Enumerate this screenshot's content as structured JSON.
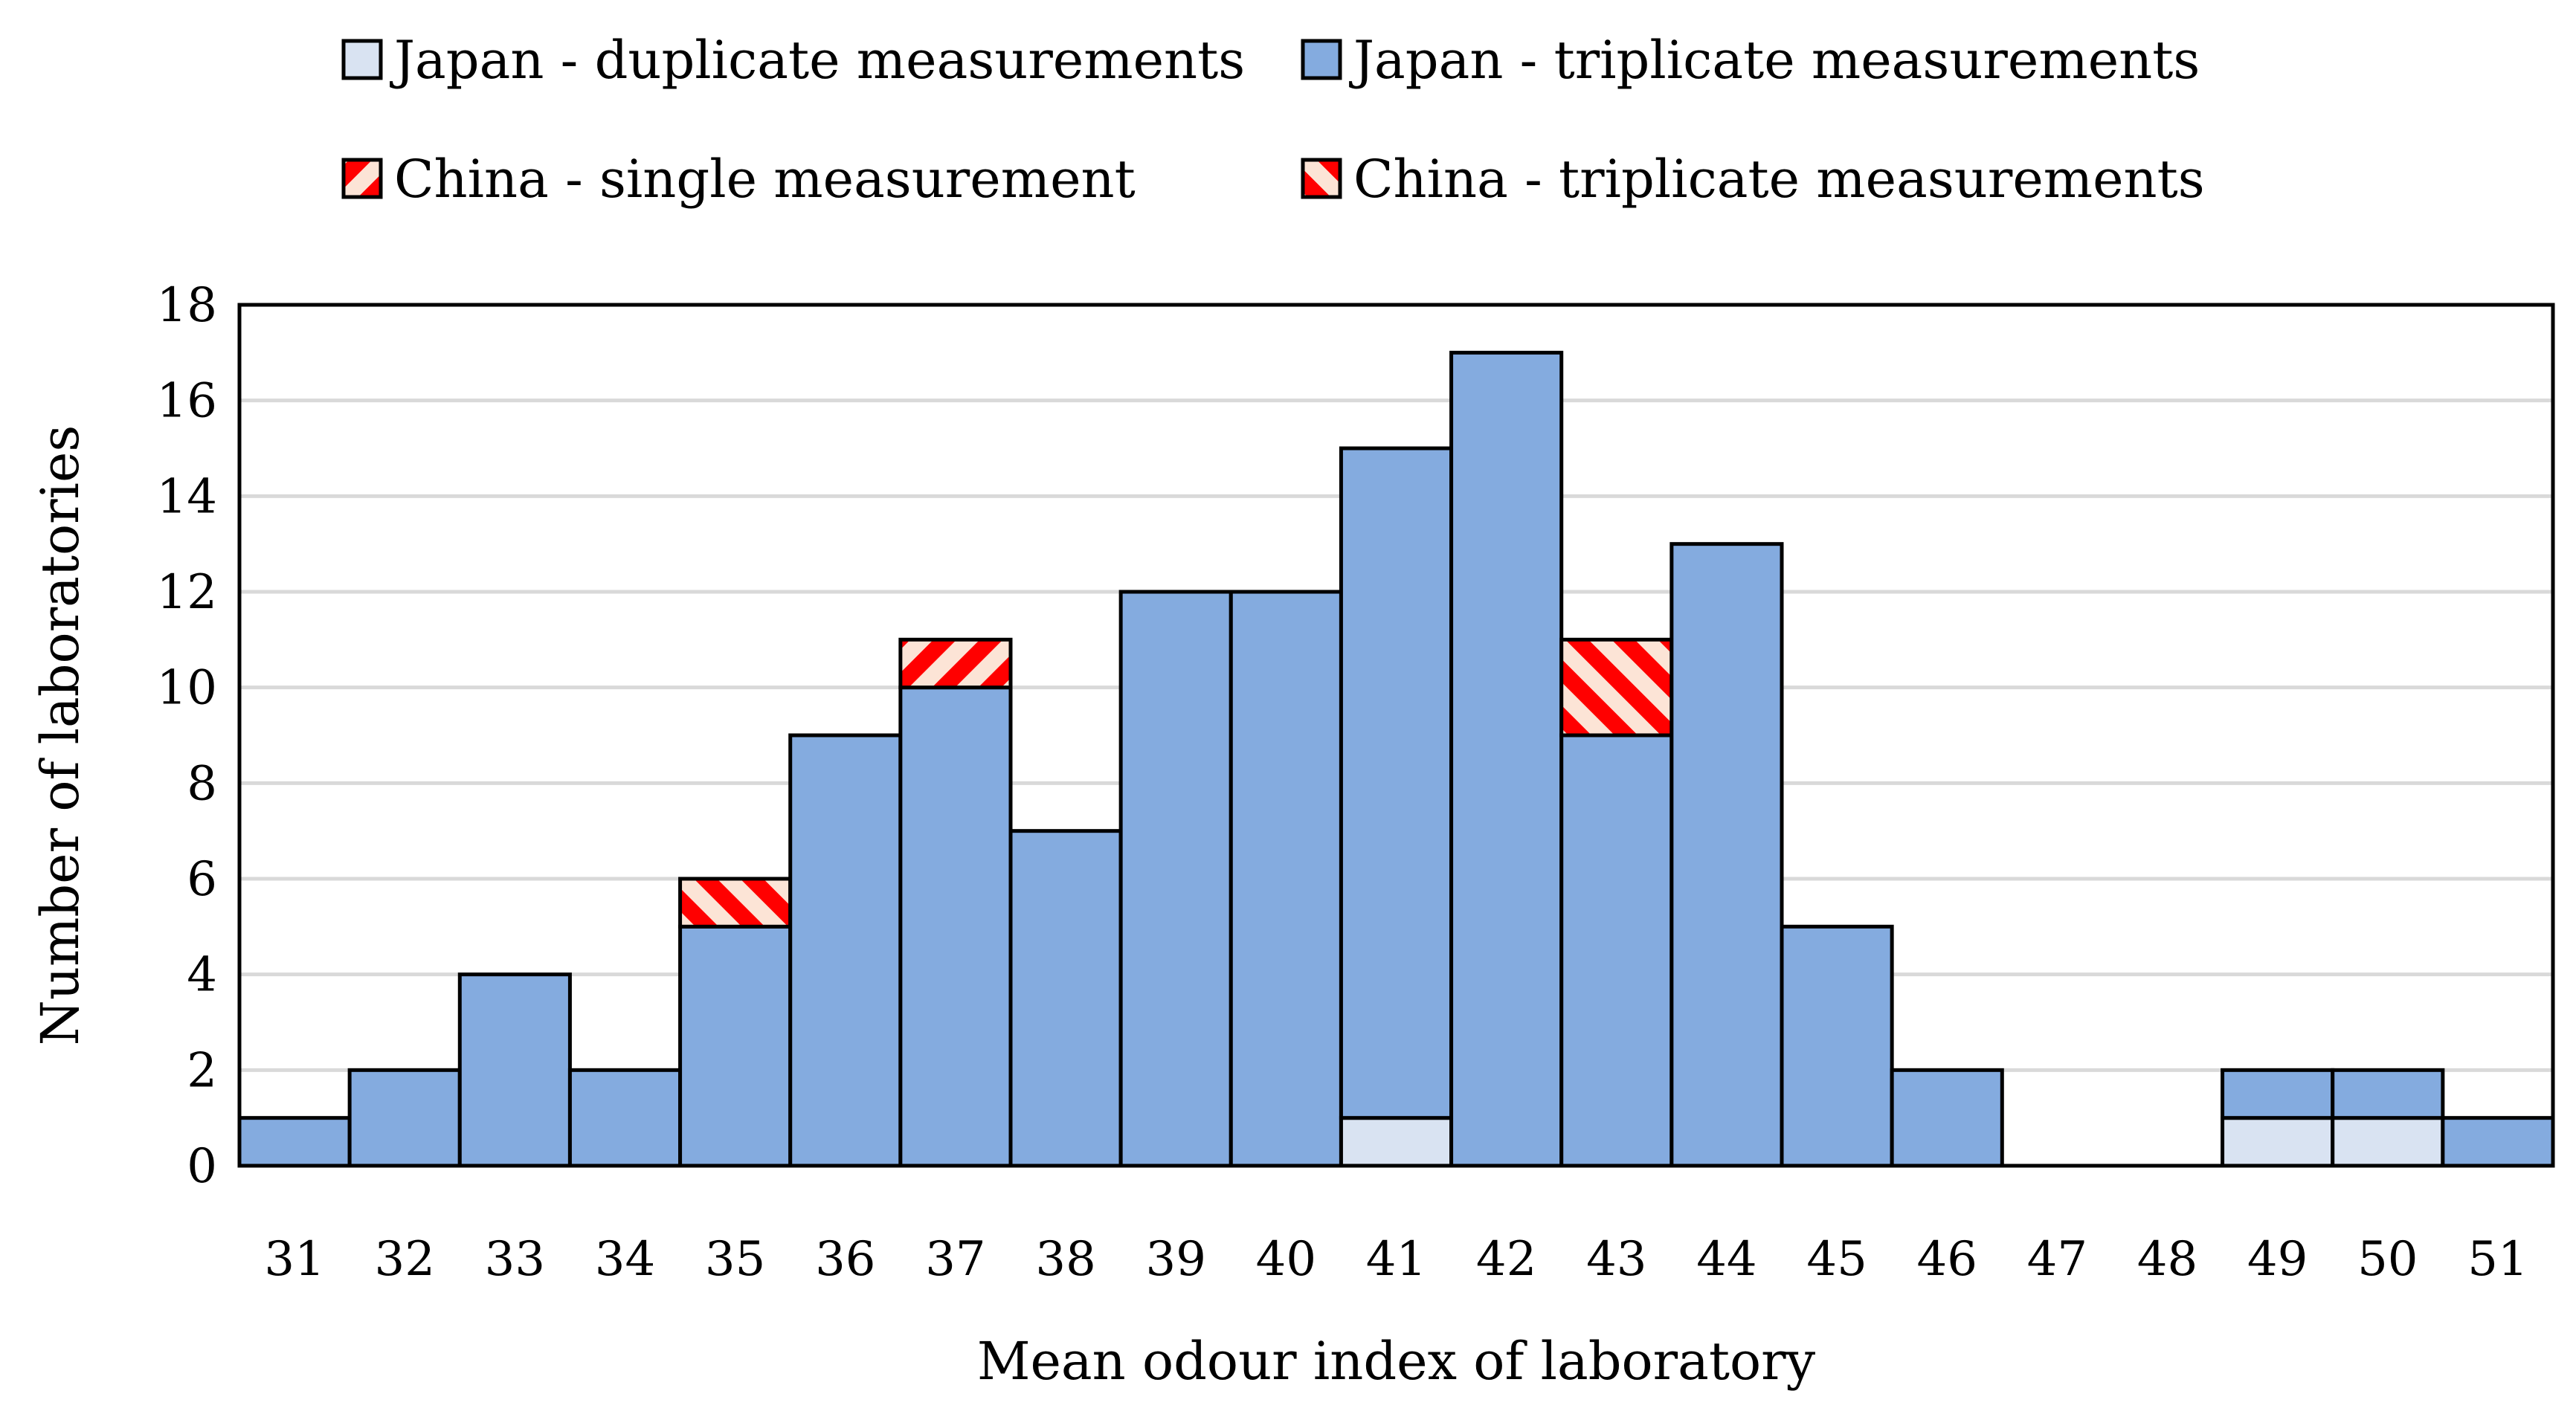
{
  "chart_data": {
    "type": "bar",
    "stacked": true,
    "xlabel": "Mean odour index of laboratory",
    "ylabel": "Number of laboratories",
    "categories": [
      "31",
      "32",
      "33",
      "34",
      "35",
      "36",
      "37",
      "38",
      "39",
      "40",
      "41",
      "42",
      "43",
      "44",
      "45",
      "46",
      "47",
      "48",
      "49",
      "50",
      "51"
    ],
    "ylim": [
      0,
      18
    ],
    "yticks": [
      0,
      2,
      4,
      6,
      8,
      10,
      12,
      14,
      16,
      18
    ],
    "grid": true,
    "legend_position": "top",
    "series": [
      {
        "name": "Japan - duplicate measurements",
        "color": "#d9e3f2",
        "pattern": "solid",
        "values": [
          0,
          0,
          0,
          0,
          0,
          0,
          0,
          0,
          0,
          0,
          1,
          0,
          0,
          0,
          0,
          0,
          0,
          0,
          1,
          1,
          0
        ]
      },
      {
        "name": "Japan - triplicate measurements",
        "color": "#84abdf",
        "pattern": "solid",
        "values": [
          1,
          2,
          4,
          2,
          5,
          9,
          10,
          7,
          12,
          12,
          14,
          17,
          9,
          13,
          5,
          2,
          0,
          0,
          1,
          1,
          1
        ]
      },
      {
        "name": "China - single measurement",
        "color": "#ff0000",
        "background": "#fce4d6",
        "pattern": "diagonal-up",
        "values": [
          0,
          0,
          0,
          0,
          0,
          0,
          1,
          0,
          0,
          0,
          0,
          0,
          0,
          0,
          0,
          0,
          0,
          0,
          0,
          0,
          0
        ]
      },
      {
        "name": "China - triplicate measurements",
        "color": "#ff0000",
        "background": "#fce4d6",
        "pattern": "diagonal-down",
        "values": [
          0,
          0,
          0,
          0,
          1,
          0,
          0,
          0,
          0,
          0,
          0,
          0,
          2,
          0,
          0,
          0,
          0,
          0,
          0,
          0,
          0
        ]
      }
    ]
  }
}
